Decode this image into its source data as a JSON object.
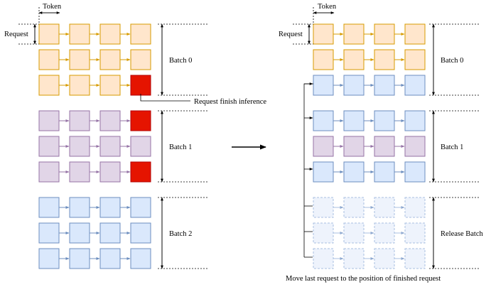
{
  "labels": {
    "token": "Token",
    "request": "Request",
    "finish": "Request finish inference",
    "caption": "Move last request to the position of finished request"
  },
  "left": {
    "batches": [
      {
        "label": "Batch 0",
        "rows": [
          [
            "orange",
            "orange",
            "orange",
            "orange"
          ],
          [
            "orange",
            "orange",
            "orange",
            "orange"
          ],
          [
            "orange",
            "orange",
            "orange",
            "red"
          ]
        ]
      },
      {
        "label": "Batch 1",
        "rows": [
          [
            "purple",
            "purple",
            "purple",
            "red"
          ],
          [
            "purple",
            "purple",
            "purple",
            "purple"
          ],
          [
            "purple",
            "purple",
            "purple",
            "red"
          ]
        ]
      },
      {
        "label": "Batch 2",
        "rows": [
          [
            "blue",
            "blue",
            "blue",
            "blue"
          ],
          [
            "blue",
            "blue",
            "blue",
            "blue"
          ],
          [
            "blue",
            "blue",
            "blue",
            "blue"
          ]
        ]
      }
    ]
  },
  "right": {
    "batches": [
      {
        "label": "Batch 0",
        "rows": [
          [
            "orange",
            "orange",
            "orange",
            "orange"
          ],
          [
            "orange",
            "orange",
            "orange",
            "orange"
          ],
          [
            "blue",
            "blue",
            "blue",
            "blue"
          ]
        ]
      },
      {
        "label": "Batch 1",
        "rows": [
          [
            "blue",
            "blue",
            "blue",
            "blue"
          ],
          [
            "purple",
            "purple",
            "purple",
            "purple"
          ],
          [
            "blue",
            "blue",
            "blue",
            "blue"
          ]
        ]
      },
      {
        "label": "Release Batch",
        "rows": [
          [
            "released",
            "released",
            "released",
            "released"
          ],
          [
            "released",
            "released",
            "released",
            "released"
          ],
          [
            "released",
            "released",
            "released",
            "released"
          ]
        ]
      }
    ]
  },
  "colors": {
    "orange": {
      "fill": "#ffe6cc",
      "stroke": "#d79b00"
    },
    "purple": {
      "fill": "#e1d5e7",
      "stroke": "#9673a6"
    },
    "blue": {
      "fill": "#dae8fc",
      "stroke": "#6c8ebf"
    },
    "red": {
      "fill": "#e51400",
      "stroke": "#b20000"
    },
    "released": {
      "fill": "#eef3fc",
      "stroke": "#a8bfe0"
    },
    "text": "#000000"
  }
}
